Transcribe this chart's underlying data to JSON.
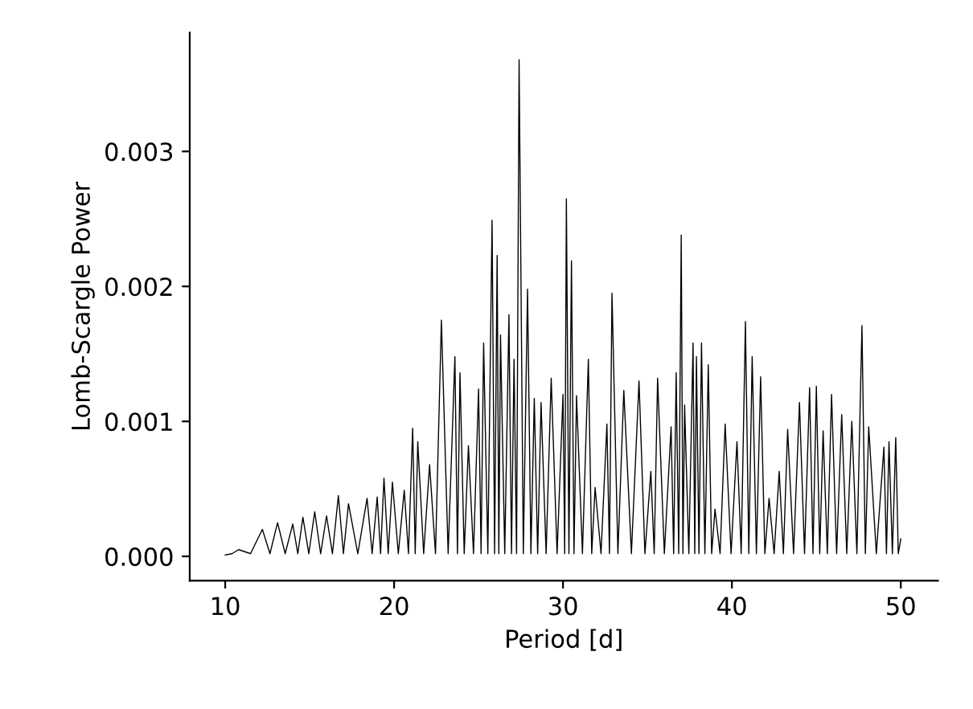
{
  "chart_data": {
    "type": "line",
    "xlabel": "Period [d]",
    "ylabel": "Lomb-Scargle Power",
    "series": [
      {
        "color": "#000000",
        "x": [
          10.0,
          10.4,
          10.8,
          11.5,
          12.2,
          12.65,
          13.1,
          13.55,
          14.0,
          14.3,
          14.6,
          14.95,
          15.3,
          15.65,
          16.0,
          16.35,
          16.7,
          17.0,
          17.3,
          17.85,
          18.4,
          18.7,
          19.0,
          19.2,
          19.4,
          19.65,
          19.9,
          20.25,
          20.6,
          20.85,
          21.1,
          21.25,
          21.4,
          21.75,
          22.1,
          22.45,
          22.8,
          23.2,
          23.6,
          23.75,
          23.9,
          24.15,
          24.4,
          24.7,
          25.0,
          25.15,
          25.3,
          25.55,
          25.8,
          25.95,
          26.1,
          26.2,
          26.3,
          26.55,
          26.8,
          26.95,
          27.1,
          27.25,
          27.4,
          27.65,
          27.9,
          28.1,
          28.3,
          28.5,
          28.7,
          29.0,
          29.3,
          29.65,
          30.0,
          30.1,
          30.2,
          30.35,
          30.5,
          30.65,
          30.8,
          31.15,
          31.5,
          31.7,
          31.9,
          32.25,
          32.6,
          32.75,
          32.9,
          33.25,
          33.6,
          34.05,
          34.5,
          34.85,
          35.2,
          35.4,
          35.6,
          36.0,
          36.4,
          36.55,
          36.7,
          36.85,
          37.0,
          37.1,
          37.2,
          37.45,
          37.7,
          37.8,
          37.9,
          38.05,
          38.2,
          38.4,
          38.6,
          38.8,
          39.0,
          39.3,
          39.6,
          39.95,
          40.3,
          40.55,
          40.8,
          41.0,
          41.2,
          41.45,
          41.7,
          41.95,
          42.2,
          42.5,
          42.8,
          43.05,
          43.3,
          43.65,
          44.0,
          44.3,
          44.6,
          44.8,
          45.0,
          45.2,
          45.4,
          45.65,
          45.9,
          46.2,
          46.5,
          46.8,
          47.1,
          47.4,
          47.7,
          47.9,
          48.1,
          48.55,
          49.0,
          49.15,
          49.3,
          49.5,
          49.7,
          49.85,
          50.0
        ],
        "values": [
          1e-05,
          2e-05,
          5e-05,
          2e-05,
          0.0002,
          2e-05,
          0.00025,
          2e-05,
          0.00024,
          2e-05,
          0.00029,
          2e-05,
          0.00033,
          2e-05,
          0.0003,
          2e-05,
          0.00045,
          2e-05,
          0.00039,
          2e-05,
          0.00043,
          2e-05,
          0.00044,
          2e-05,
          0.00058,
          2e-05,
          0.00055,
          2e-05,
          0.00049,
          2e-05,
          0.00095,
          2e-05,
          0.00085,
          2e-05,
          0.00068,
          2e-05,
          0.00175,
          2e-05,
          0.00148,
          2e-05,
          0.00136,
          2e-05,
          0.00082,
          2e-05,
          0.00124,
          2e-05,
          0.00158,
          2e-05,
          0.00249,
          2e-05,
          0.00223,
          2e-05,
          0.00164,
          2e-05,
          0.00179,
          2e-05,
          0.00146,
          2e-05,
          0.00368,
          2e-05,
          0.00198,
          2e-05,
          0.00117,
          2e-05,
          0.00114,
          2e-05,
          0.00132,
          2e-05,
          0.0012,
          2e-05,
          0.00265,
          2e-05,
          0.00219,
          2e-05,
          0.00119,
          2e-05,
          0.00146,
          2e-05,
          0.00051,
          2e-05,
          0.00098,
          2e-05,
          0.00195,
          2e-05,
          0.00123,
          2e-05,
          0.0013,
          2e-05,
          0.00063,
          2e-05,
          0.00132,
          2e-05,
          0.00096,
          2e-05,
          0.00136,
          2e-05,
          0.00238,
          2e-05,
          0.00112,
          2e-05,
          0.00158,
          2e-05,
          0.00148,
          2e-05,
          0.00158,
          2e-05,
          0.00142,
          2e-05,
          0.00035,
          2e-05,
          0.00098,
          2e-05,
          0.00085,
          2e-05,
          0.00174,
          2e-05,
          0.00148,
          2e-05,
          0.00133,
          2e-05,
          0.00043,
          2e-05,
          0.00063,
          2e-05,
          0.00094,
          2e-05,
          0.00114,
          2e-05,
          0.00125,
          2e-05,
          0.00126,
          2e-05,
          0.00093,
          2e-05,
          0.0012,
          2e-05,
          0.00105,
          2e-05,
          0.001,
          2e-05,
          0.00171,
          2e-05,
          0.00096,
          2e-05,
          0.00081,
          2e-05,
          0.00085,
          2e-05,
          0.00088,
          2e-05,
          0.00013
        ]
      }
    ],
    "xlim": [
      7.9,
      52.2
    ],
    "xticks": [
      10,
      20,
      30,
      40,
      50
    ],
    "ylim": [
      -0.00018,
      0.00388
    ],
    "yticks": [
      {
        "value": 0,
        "label": "0.000"
      },
      {
        "value": 0.001,
        "label": "0.001"
      },
      {
        "value": 0.002,
        "label": "0.002"
      },
      {
        "value": 0.003,
        "label": "0.003"
      }
    ],
    "grid": false,
    "legend": false,
    "marker": "none",
    "line_style": "solid"
  }
}
